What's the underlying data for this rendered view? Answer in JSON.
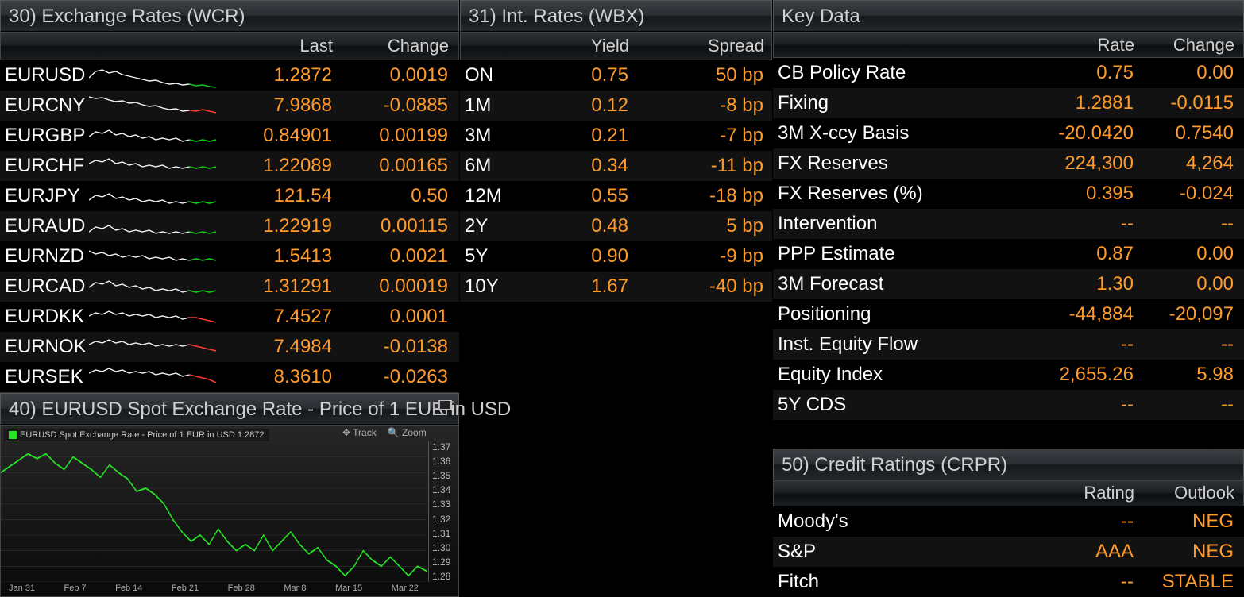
{
  "colors": {
    "text_white": "#ffffff",
    "text_orange": "#ff9b2a",
    "spark_white": "#f5f5f5",
    "spark_green": "#19c419",
    "spark_red": "#ff3a2a",
    "chart_line": "#25e625",
    "panel_grad_top": "#3a3f44",
    "panel_grad_bot": "#15181b"
  },
  "fx": {
    "title": "30) Exchange Rates (WCR)",
    "headers": {
      "last": "Last",
      "change": "Change"
    },
    "rows": [
      {
        "pair": "EURUSD",
        "last": "1.2872",
        "change": "0.0019",
        "tail": "green",
        "spark": [
          20,
          12,
          10,
          14,
          12,
          16,
          18,
          20,
          22,
          24,
          23,
          26,
          28,
          27,
          29,
          28,
          30,
          29,
          31,
          32
        ]
      },
      {
        "pair": "EURCNY",
        "last": "7.9868",
        "change": "-0.0885",
        "tail": "red",
        "spark": [
          6,
          8,
          7,
          10,
          12,
          11,
          14,
          13,
          16,
          18,
          17,
          20,
          22,
          21,
          24,
          23,
          24,
          22,
          24,
          26
        ]
      },
      {
        "pair": "EURGBP",
        "last": "0.84901",
        "change": "0.00199",
        "tail": "green",
        "spark": [
          18,
          12,
          14,
          10,
          16,
          14,
          18,
          16,
          20,
          18,
          22,
          20,
          22,
          20,
          24,
          22,
          24,
          22,
          24,
          22
        ]
      },
      {
        "pair": "EURCHF",
        "last": "1.22089",
        "change": "0.00165",
        "tail": "green",
        "spark": [
          14,
          10,
          12,
          8,
          14,
          12,
          16,
          14,
          18,
          16,
          18,
          16,
          20,
          18,
          20,
          18,
          20,
          18,
          20,
          18
        ]
      },
      {
        "pair": "EURJPY",
        "last": "121.54",
        "change": "0.50",
        "tail": "green",
        "spark": [
          22,
          16,
          18,
          14,
          20,
          18,
          22,
          20,
          24,
          22,
          24,
          22,
          26,
          24,
          26,
          24,
          26,
          24,
          26,
          24
        ]
      },
      {
        "pair": "EURAUD",
        "last": "1.22919",
        "change": "0.00115",
        "tail": "green",
        "spark": [
          24,
          18,
          20,
          16,
          22,
          20,
          24,
          22,
          24,
          22,
          26,
          24,
          26,
          24,
          26,
          24,
          26,
          24,
          26,
          24
        ]
      },
      {
        "pair": "EURNZD",
        "last": "1.5413",
        "change": "0.0021",
        "tail": "green",
        "spark": [
          10,
          14,
          12,
          16,
          14,
          18,
          16,
          18,
          16,
          20,
          18,
          20,
          18,
          22,
          20,
          22,
          20,
          22,
          20,
          22
        ]
      },
      {
        "pair": "EURCAD",
        "last": "1.31291",
        "change": "0.00019",
        "tail": "green",
        "spark": [
          18,
          12,
          14,
          10,
          16,
          14,
          18,
          16,
          20,
          18,
          22,
          20,
          22,
          20,
          24,
          22,
          24,
          22,
          24,
          22
        ]
      },
      {
        "pair": "EURDKK",
        "last": "7.4527",
        "change": "0.0001",
        "tail": "red",
        "spark": [
          16,
          12,
          14,
          10,
          14,
          12,
          16,
          14,
          16,
          14,
          18,
          16,
          18,
          16,
          20,
          18,
          18,
          20,
          22,
          24
        ]
      },
      {
        "pair": "EURNOK",
        "last": "7.4984",
        "change": "-0.0138",
        "tail": "red",
        "spark": [
          14,
          10,
          12,
          8,
          12,
          10,
          14,
          12,
          14,
          12,
          16,
          14,
          16,
          14,
          16,
          14,
          16,
          18,
          20,
          22
        ]
      },
      {
        "pair": "EURSEK",
        "last": "8.3610",
        "change": "-0.0263",
        "tail": "red",
        "spark": [
          12,
          8,
          10,
          6,
          10,
          8,
          12,
          10,
          12,
          10,
          14,
          12,
          14,
          12,
          16,
          14,
          16,
          18,
          20,
          24
        ]
      }
    ]
  },
  "intrates": {
    "title": "31) Int. Rates (WBX)",
    "headers": {
      "yield": "Yield",
      "spread": "Spread"
    },
    "rows": [
      {
        "tenor": "ON",
        "yield": "0.75",
        "spread": "50 bp"
      },
      {
        "tenor": "1M",
        "yield": "0.12",
        "spread": "-8 bp"
      },
      {
        "tenor": "3M",
        "yield": "0.21",
        "spread": "-7 bp"
      },
      {
        "tenor": "6M",
        "yield": "0.34",
        "spread": "-11 bp"
      },
      {
        "tenor": "12M",
        "yield": "0.55",
        "spread": "-18 bp"
      },
      {
        "tenor": "2Y",
        "yield": "0.48",
        "spread": "5 bp"
      },
      {
        "tenor": "5Y",
        "yield": "0.90",
        "spread": "-9 bp"
      },
      {
        "tenor": "10Y",
        "yield": "1.67",
        "spread": "-40 bp"
      }
    ]
  },
  "keydata": {
    "title": "Key Data",
    "headers": {
      "rate": "Rate",
      "change": "Change"
    },
    "rows": [
      {
        "name": "CB Policy Rate",
        "rate": "0.75",
        "change": "0.00"
      },
      {
        "name": "Fixing",
        "rate": "1.2881",
        "change": "-0.0115"
      },
      {
        "name": "3M X-ccy Basis",
        "rate": "-20.0420",
        "change": "0.7540"
      },
      {
        "name": "FX Reserves",
        "rate": "224,300",
        "change": "4,264"
      },
      {
        "name": "FX Reserves (%)",
        "rate": "0.395",
        "change": "-0.024"
      },
      {
        "name": "Intervention",
        "rate": "--",
        "change": "--"
      },
      {
        "name": "PPP Estimate",
        "rate": "0.87",
        "change": "0.00"
      },
      {
        "name": "3M Forecast",
        "rate": "1.30",
        "change": "0.00"
      },
      {
        "name": "Positioning",
        "rate": "-44,884",
        "change": "-20,097"
      },
      {
        "name": "Inst. Equity Flow",
        "rate": "--",
        "change": "--"
      },
      {
        "name": "Equity Index",
        "rate": "2,655.26",
        "change": "5.98"
      },
      {
        "name": "5Y CDS",
        "rate": "--",
        "change": "--"
      }
    ]
  },
  "credit": {
    "title": "50) Credit Ratings (CRPR)",
    "headers": {
      "rating": "Rating",
      "outlook": "Outlook"
    },
    "rows": [
      {
        "name": "Moody's",
        "rating": "--",
        "outlook": "NEG"
      },
      {
        "name": "S&P",
        "rating": "AAA",
        "outlook": "NEG"
      },
      {
        "name": "Fitch",
        "rating": "--",
        "outlook": "STABLE"
      }
    ]
  },
  "chart": {
    "title": "40) EURUSD Spot Exchange Rate - Price of 1 EUR in USD",
    "legend": "EURUSD Spot Exchange Rate - Price of 1 EUR in USD  1.2872",
    "toolbar": {
      "track": "Track",
      "zoom": "Zoom"
    },
    "yticks": [
      "1.37",
      "1.36",
      "1.35",
      "1.34",
      "1.33",
      "1.32",
      "1.31",
      "1.30",
      "1.29",
      "1.28"
    ],
    "ylim": [
      1.28,
      1.37
    ],
    "xticks": [
      "Jan 31",
      "Feb 7",
      "Feb 14",
      "Feb 21",
      "Feb 28",
      "Mar 8",
      "Mar 15",
      "Mar 22"
    ],
    "line_color": "#25e625",
    "series": [
      1.35,
      1.354,
      1.358,
      1.362,
      1.359,
      1.362,
      1.356,
      1.352,
      1.36,
      1.356,
      1.352,
      1.347,
      1.355,
      1.35,
      1.346,
      1.338,
      1.34,
      1.336,
      1.33,
      1.32,
      1.312,
      1.306,
      1.31,
      1.304,
      1.314,
      1.306,
      1.3,
      1.304,
      1.3,
      1.31,
      1.3,
      1.306,
      1.312,
      1.304,
      1.298,
      1.302,
      1.294,
      1.29,
      1.284,
      1.29,
      1.3,
      1.294,
      1.29,
      1.296,
      1.29,
      1.284,
      1.29,
      1.287
    ]
  }
}
